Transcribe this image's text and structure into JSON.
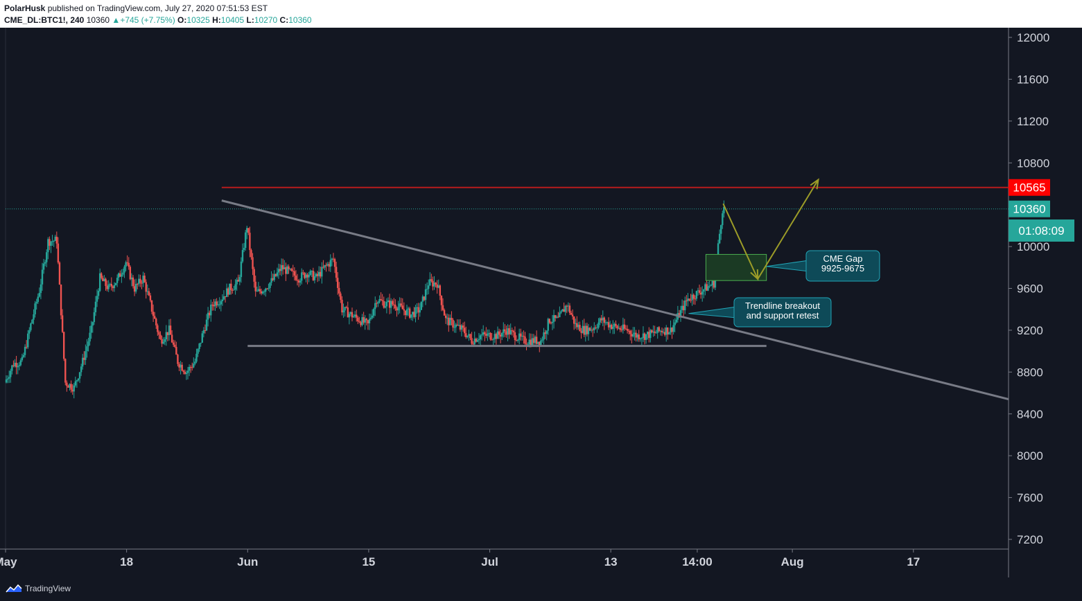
{
  "header": {
    "author": "PolarHusk",
    "published_text": "published on TradingView.com, July 27, 2020 07:51:53 EST",
    "symbol": "CME_DL:BTC1!, 240",
    "last": "10360",
    "change": "+745 (+7.75%)",
    "open_label": "O:",
    "open": "10325",
    "high_label": "H:",
    "high": "10405",
    "low_label": "L:",
    "low": "10270",
    "close_label": "C:",
    "close": "10360"
  },
  "footer": {
    "brand": "TradingView",
    "logo_icon": "tradingview-logo-icon"
  },
  "colors": {
    "background": "#131722",
    "up": "#26a69a",
    "down": "#ef5350",
    "resistance": "#b71c1c",
    "trendline": "#787b86",
    "arrow": "#9c9c28",
    "gap_fill": "#1b3a24",
    "gap_border": "#4caf50",
    "callout_fill": "#0e4a58",
    "callout_border": "#22a6b8",
    "grid_border": "#2a2e39"
  },
  "chart_data": {
    "type": "candlestick",
    "symbol": "CME_DL:BTC1!",
    "timeframe": "240",
    "y_ticks": [
      12000,
      11600,
      11200,
      10800,
      10000,
      9600,
      9200,
      8800,
      8400,
      8000,
      7600,
      7200
    ],
    "ylim": [
      7150,
      12100
    ],
    "x_tick_labels": [
      "May",
      "18",
      "Jun",
      "15",
      "Jul",
      "13",
      "14:00",
      "Aug",
      "17"
    ],
    "x_tick_values": [
      "2020-05-04",
      "2020-05-18",
      "2020-06-01",
      "2020-06-15",
      "2020-06-29",
      "2020-07-13",
      "2020-07-23",
      "2020-08-03",
      "2020-08-17"
    ],
    "xlim": [
      "2020-05-04",
      "2020-08-28"
    ],
    "price_labels": [
      {
        "value": 10565,
        "text": "10565",
        "kind": "resistance",
        "color": "#ff0000"
      },
      {
        "value": 10360,
        "text": "10360",
        "kind": "last",
        "color": "#26a69a"
      },
      {
        "value": 10000,
        "text": "01:08:09",
        "kind": "countdown",
        "color": "#26a69a"
      }
    ],
    "resistance_line": {
      "y": 10565,
      "x_start": "2020-05-29",
      "x_end": "2020-08-28"
    },
    "support_line": {
      "y": 9050,
      "x_start": "2020-06-01",
      "x_end": "2020-07-31"
    },
    "trendline": {
      "points": [
        {
          "x": "2020-05-29",
          "y": 10440
        },
        {
          "x": "2020-08-28",
          "y": 8540
        }
      ]
    },
    "cme_gap_box": {
      "x_start": "2020-07-24",
      "x_end": "2020-07-31",
      "y_top": 9925,
      "y_bottom": 9675
    },
    "projection_path": [
      {
        "x": "2020-07-26",
        "y": 10410
      },
      {
        "x": "2020-07-30",
        "y": 9690
      },
      {
        "x": "2020-08-06",
        "y": 10640
      }
    ],
    "annotations": [
      {
        "text": [
          "CME Gap",
          "9925-9675"
        ],
        "anchor": {
          "x": "2020-07-31",
          "y": 9810
        }
      },
      {
        "text": [
          "Trendline breakout",
          "and support retest"
        ],
        "anchor": {
          "x": "2020-07-22",
          "y": 9360
        }
      }
    ],
    "series_points": [
      {
        "x": "2020-05-04",
        "y": 8700
      },
      {
        "x": "2020-05-05",
        "y": 8880
      },
      {
        "x": "2020-05-06",
        "y": 8900
      },
      {
        "x": "2020-05-07",
        "y": 9250
      },
      {
        "x": "2020-05-08",
        "y": 9580
      },
      {
        "x": "2020-05-09",
        "y": 10050
      },
      {
        "x": "2020-05-10",
        "y": 10060
      },
      {
        "x": "2020-05-11",
        "y": 8700
      },
      {
        "x": "2020-05-12",
        "y": 8650
      },
      {
        "x": "2020-05-13",
        "y": 8900
      },
      {
        "x": "2020-05-14",
        "y": 9200
      },
      {
        "x": "2020-05-15",
        "y": 9700
      },
      {
        "x": "2020-05-16",
        "y": 9600
      },
      {
        "x": "2020-05-17",
        "y": 9680
      },
      {
        "x": "2020-05-18",
        "y": 9850
      },
      {
        "x": "2020-05-19",
        "y": 9600
      },
      {
        "x": "2020-05-20",
        "y": 9700
      },
      {
        "x": "2020-05-21",
        "y": 9400
      },
      {
        "x": "2020-05-22",
        "y": 9100
      },
      {
        "x": "2020-05-23",
        "y": 9200
      },
      {
        "x": "2020-05-24",
        "y": 8900
      },
      {
        "x": "2020-05-25",
        "y": 8800
      },
      {
        "x": "2020-05-26",
        "y": 8900
      },
      {
        "x": "2020-05-27",
        "y": 9200
      },
      {
        "x": "2020-05-28",
        "y": 9450
      },
      {
        "x": "2020-05-29",
        "y": 9500
      },
      {
        "x": "2020-05-30",
        "y": 9600
      },
      {
        "x": "2020-05-31",
        "y": 9650
      },
      {
        "x": "2020-06-01",
        "y": 10200
      },
      {
        "x": "2020-06-02",
        "y": 9550
      },
      {
        "x": "2020-06-03",
        "y": 9600
      },
      {
        "x": "2020-06-04",
        "y": 9680
      },
      {
        "x": "2020-06-05",
        "y": 9800
      },
      {
        "x": "2020-06-06",
        "y": 9750
      },
      {
        "x": "2020-06-07",
        "y": 9700
      },
      {
        "x": "2020-06-08",
        "y": 9750
      },
      {
        "x": "2020-06-09",
        "y": 9700
      },
      {
        "x": "2020-06-10",
        "y": 9800
      },
      {
        "x": "2020-06-11",
        "y": 9880
      },
      {
        "x": "2020-06-12",
        "y": 9400
      },
      {
        "x": "2020-06-13",
        "y": 9350
      },
      {
        "x": "2020-06-14",
        "y": 9300
      },
      {
        "x": "2020-06-15",
        "y": 9250
      },
      {
        "x": "2020-06-16",
        "y": 9500
      },
      {
        "x": "2020-06-17",
        "y": 9450
      },
      {
        "x": "2020-06-18",
        "y": 9450
      },
      {
        "x": "2020-06-19",
        "y": 9400
      },
      {
        "x": "2020-06-20",
        "y": 9350
      },
      {
        "x": "2020-06-21",
        "y": 9400
      },
      {
        "x": "2020-06-22",
        "y": 9650
      },
      {
        "x": "2020-06-23",
        "y": 9650
      },
      {
        "x": "2020-06-24",
        "y": 9300
      },
      {
        "x": "2020-06-25",
        "y": 9250
      },
      {
        "x": "2020-06-26",
        "y": 9200
      },
      {
        "x": "2020-06-27",
        "y": 9100
      },
      {
        "x": "2020-06-28",
        "y": 9150
      },
      {
        "x": "2020-06-29",
        "y": 9150
      },
      {
        "x": "2020-06-30",
        "y": 9150
      },
      {
        "x": "2020-07-01",
        "y": 9200
      },
      {
        "x": "2020-07-02",
        "y": 9150
      },
      {
        "x": "2020-07-03",
        "y": 9100
      },
      {
        "x": "2020-07-04",
        "y": 9100
      },
      {
        "x": "2020-07-05",
        "y": 9100
      },
      {
        "x": "2020-07-06",
        "y": 9300
      },
      {
        "x": "2020-07-07",
        "y": 9300
      },
      {
        "x": "2020-07-08",
        "y": 9450
      },
      {
        "x": "2020-07-09",
        "y": 9250
      },
      {
        "x": "2020-07-10",
        "y": 9200
      },
      {
        "x": "2020-07-11",
        "y": 9220
      },
      {
        "x": "2020-07-12",
        "y": 9300
      },
      {
        "x": "2020-07-13",
        "y": 9250
      },
      {
        "x": "2020-07-14",
        "y": 9220
      },
      {
        "x": "2020-07-15",
        "y": 9200
      },
      {
        "x": "2020-07-16",
        "y": 9150
      },
      {
        "x": "2020-07-17",
        "y": 9150
      },
      {
        "x": "2020-07-18",
        "y": 9170
      },
      {
        "x": "2020-07-19",
        "y": 9200
      },
      {
        "x": "2020-07-20",
        "y": 9200
      },
      {
        "x": "2020-07-21",
        "y": 9350
      },
      {
        "x": "2020-07-22",
        "y": 9500
      },
      {
        "x": "2020-07-23",
        "y": 9550
      },
      {
        "x": "2020-07-24",
        "y": 9600
      },
      {
        "x": "2020-07-25",
        "y": 9650
      },
      {
        "x": "2020-07-26",
        "y": 10360
      }
    ]
  }
}
